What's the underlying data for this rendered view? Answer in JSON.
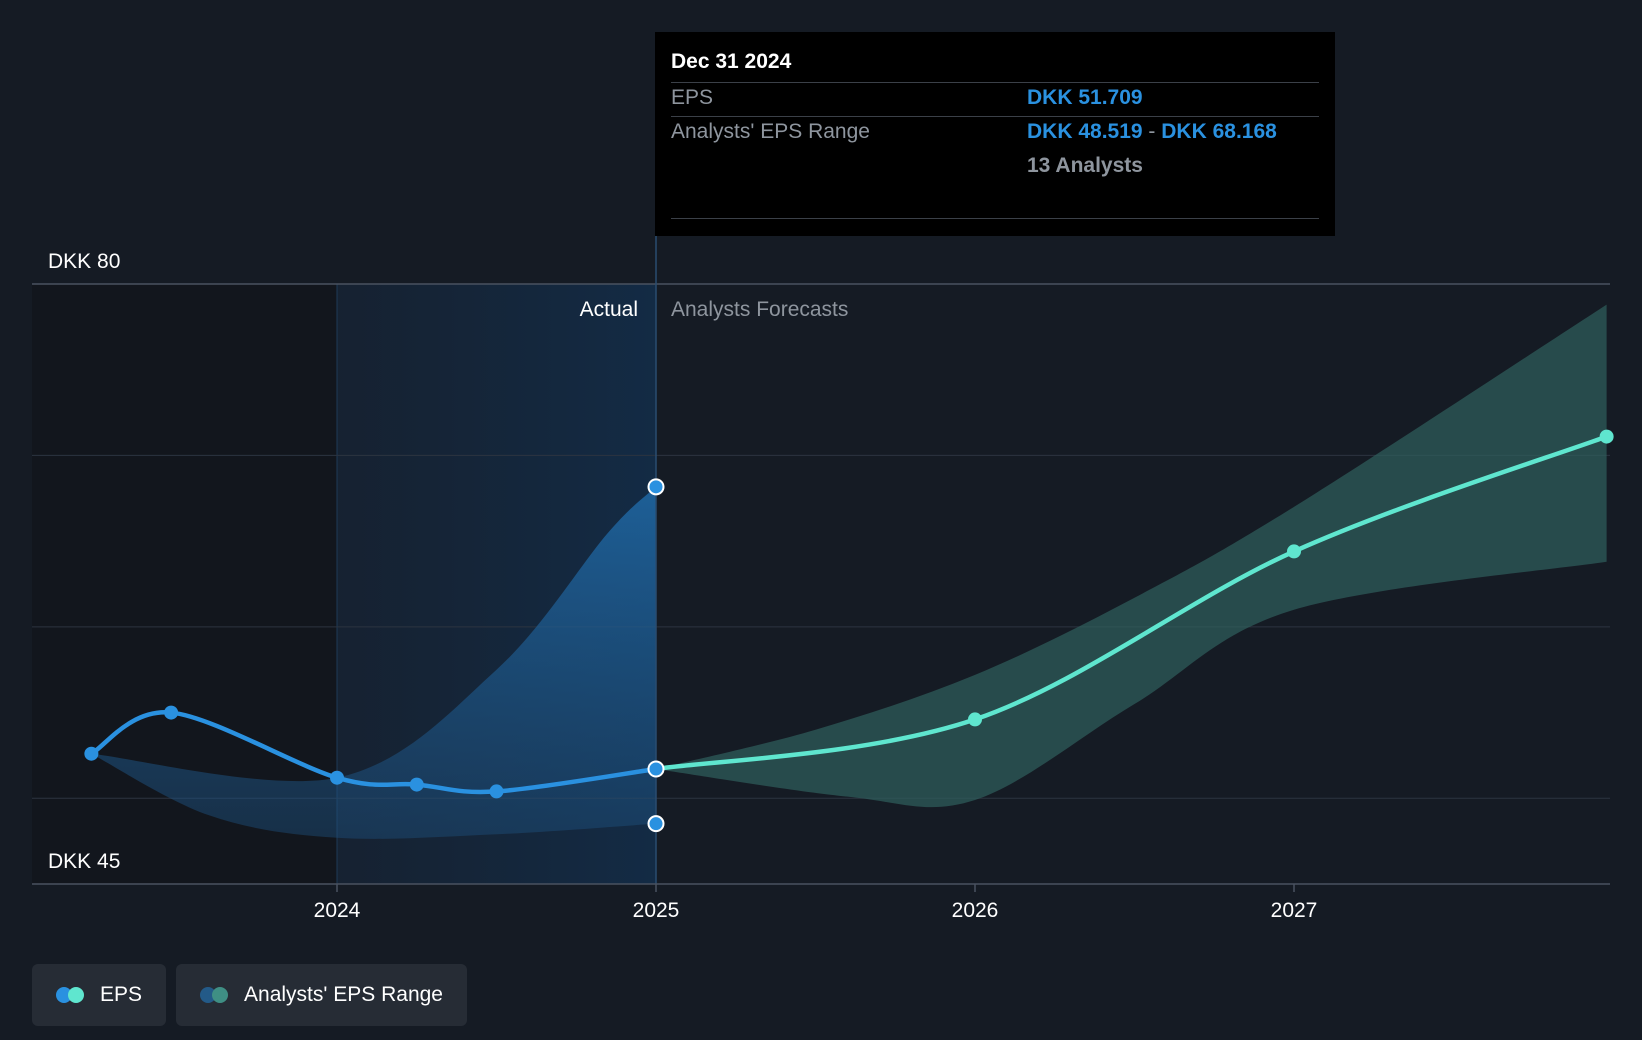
{
  "chart_data": {
    "type": "line",
    "currency": "DKK",
    "y_axis": {
      "min": 45,
      "max": 80,
      "top_label": "DKK 80",
      "bottom_label": "DKK 45"
    },
    "x_axis": {
      "ticks": [
        "2024",
        "2025",
        "2026",
        "2027"
      ]
    },
    "divider_labels": {
      "actual": "Actual",
      "forecast": "Analysts Forecasts"
    },
    "series": [
      {
        "name": "EPS",
        "kind": "actual",
        "color": "#2a91e0",
        "points": [
          {
            "x": 2023.23,
            "y": 52.6
          },
          {
            "x": 2023.48,
            "y": 55.0
          },
          {
            "x": 2024.0,
            "y": 51.2
          },
          {
            "x": 2024.25,
            "y": 50.8
          },
          {
            "x": 2024.5,
            "y": 50.4
          },
          {
            "x": 2025.0,
            "y": 51.709
          }
        ]
      },
      {
        "name": "EPS",
        "kind": "forecast",
        "color": "#5fe6cf",
        "points": [
          {
            "x": 2025.0,
            "y": 51.709
          },
          {
            "x": 2026.0,
            "y": 54.6
          },
          {
            "x": 2027.0,
            "y": 64.4
          },
          {
            "x": 2027.98,
            "y": 71.1
          }
        ]
      }
    ],
    "ranges": [
      {
        "name": "Analysts' EPS Range",
        "kind": "actual",
        "color": "#2a91e0",
        "upper": [
          {
            "x": 2023.23,
            "y": 52.6
          },
          {
            "x": 2024.0,
            "y": 51.2
          },
          {
            "x": 2024.5,
            "y": 57.5
          },
          {
            "x": 2024.85,
            "y": 65.5
          },
          {
            "x": 2025.0,
            "y": 68.168
          }
        ],
        "lower": [
          {
            "x": 2023.23,
            "y": 52.6
          },
          {
            "x": 2023.6,
            "y": 49.0
          },
          {
            "x": 2024.0,
            "y": 47.7
          },
          {
            "x": 2024.5,
            "y": 47.9
          },
          {
            "x": 2025.0,
            "y": 48.519
          }
        ]
      },
      {
        "name": "Analysts' EPS Range",
        "kind": "forecast",
        "color": "#5fe6cf",
        "upper": [
          {
            "x": 2025.0,
            "y": 51.709
          },
          {
            "x": 2025.5,
            "y": 54.0
          },
          {
            "x": 2026.0,
            "y": 57.2
          },
          {
            "x": 2026.5,
            "y": 61.7
          },
          {
            "x": 2027.0,
            "y": 67.0
          },
          {
            "x": 2027.98,
            "y": 78.8
          }
        ],
        "lower": [
          {
            "x": 2025.0,
            "y": 51.709
          },
          {
            "x": 2025.6,
            "y": 50.1
          },
          {
            "x": 2026.0,
            "y": 49.9
          },
          {
            "x": 2026.5,
            "y": 55.5
          },
          {
            "x": 2027.0,
            "y": 61.0
          },
          {
            "x": 2027.98,
            "y": 63.8
          }
        ]
      }
    ],
    "tooltip": {
      "date": "Dec 31 2024",
      "eps_label": "EPS",
      "eps_value": "DKK 51.709",
      "range_label": "Analysts' EPS Range",
      "range_low": "DKK 48.519",
      "range_sep": "-",
      "range_high": "DKK 68.168",
      "analysts": "13 Analysts"
    },
    "legend": [
      {
        "label": "EPS",
        "colors": [
          "#2a91e0",
          "#5fe6cf"
        ]
      },
      {
        "label": "Analysts' EPS Range",
        "colors": [
          "#235a88",
          "#3f8f84"
        ]
      }
    ],
    "grid": true
  }
}
